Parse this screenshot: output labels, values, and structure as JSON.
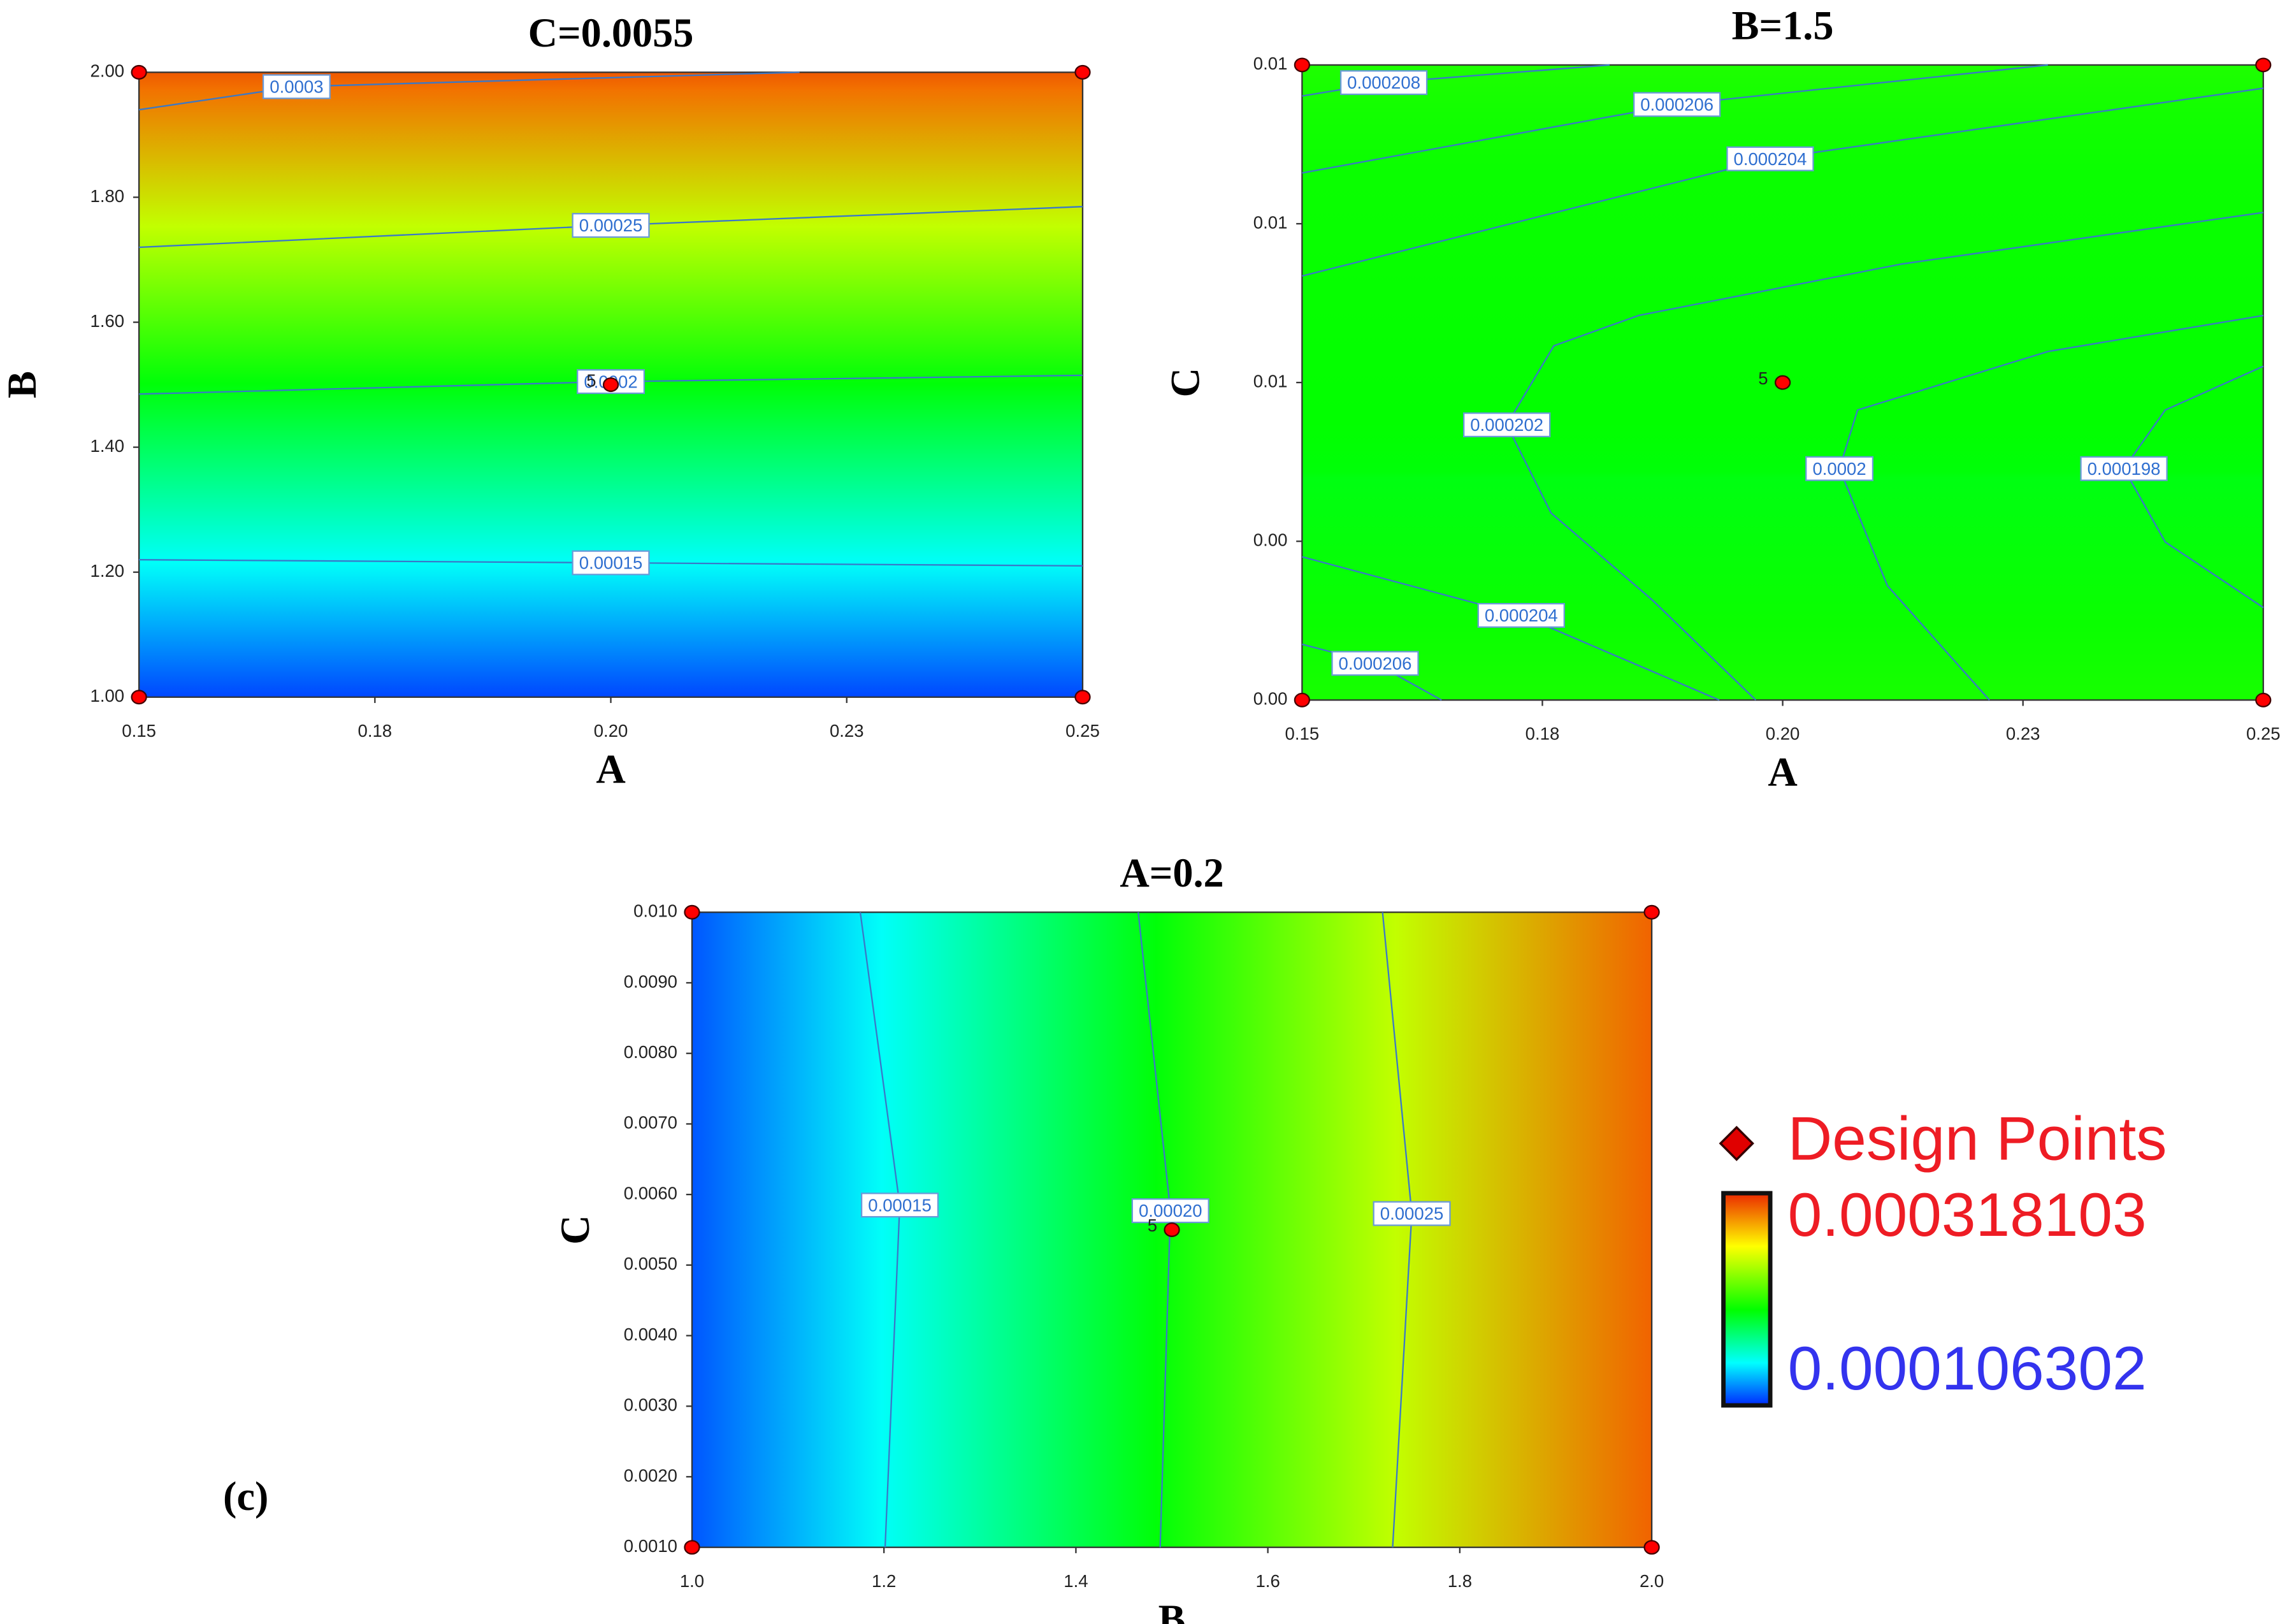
{
  "chart_data": [
    {
      "type": "contour",
      "title": "C=0.0055",
      "x_label": "A",
      "y_label": "B",
      "xlim": [
        0.15,
        0.25
      ],
      "ylim": [
        1,
        2
      ],
      "xticks": [
        0.15,
        {
          "value": 0.175,
          "label": "0.18"
        },
        {
          "value": 0.2,
          "label": "0.20"
        },
        {
          "value": 0.225,
          "label": "0.23"
        },
        0.25
      ],
      "yticks": [
        {
          "value": 1,
          "label": "1.00"
        },
        {
          "value": 1.2,
          "label": "1.20"
        },
        {
          "value": 1.4,
          "label": "1.40"
        },
        {
          "value": 1.6,
          "label": "1.60"
        },
        {
          "value": 1.8,
          "label": "1.80"
        },
        {
          "value": 2,
          "label": "2.00"
        }
      ],
      "contours": [
        {
          "level": 0.0003,
          "x": [
            0.15,
            0.1667,
            0.22
          ],
          "y": [
            1.94,
            1.977,
            2.0
          ]
        },
        {
          "level": 0.00025,
          "x": [
            0.15,
            0.2,
            0.25
          ],
          "y": [
            1.72,
            1.755,
            1.785
          ]
        },
        {
          "level": 0.0002,
          "x": [
            0.15,
            0.2,
            0.25
          ],
          "y": [
            1.485,
            1.505,
            1.515
          ]
        },
        {
          "level": 0.00015,
          "x": [
            0.15,
            0.2,
            0.25
          ],
          "y": [
            1.22,
            1.215,
            1.21
          ]
        }
      ],
      "design_points": {
        "color": "#ff0000",
        "x": [
          0.15,
          0.15,
          0.25,
          0.25,
          0.2
        ],
        "y": [
          1,
          2,
          1,
          2,
          1.5
        ],
        "labels": [
          null,
          null,
          null,
          null,
          "5"
        ]
      }
    },
    {
      "type": "contour",
      "title": "B=1.5",
      "x_label": "A",
      "y_label": "C",
      "xlim": [
        0.15,
        0.25
      ],
      "ylim": [
        0.001,
        0.01
      ],
      "xticks": [
        0.15,
        {
          "value": 0.175,
          "label": "0.18"
        },
        {
          "value": 0.2,
          "label": "0.20"
        },
        {
          "value": 0.225,
          "label": "0.23"
        },
        0.25
      ],
      "yticks": [
        {
          "value": 0.001,
          "label": "0.00"
        },
        {
          "value": 0.00325,
          "label": "0.00"
        },
        {
          "value": 0.0055,
          "label": "0.01"
        },
        {
          "value": 0.00775,
          "label": "0.01"
        },
        0.01
      ],
      "contours": [
        {
          "level": 0.000208,
          "x": [
            0.15,
            0.1585,
            0.182
          ],
          "y": [
            0.00956,
            0.00975,
            0.01
          ]
        },
        {
          "level": 0.000206,
          "x": [
            0.15,
            0.189,
            0.2276
          ],
          "y": [
            0.00847,
            0.00944,
            0.01
          ]
        },
        {
          "level": 0.000204,
          "x": [
            0.15,
            0.1987,
            0.25
          ],
          "y": [
            0.00701,
            0.00867,
            0.00967
          ]
        },
        {
          "level": 0.000202,
          "x": [
            0.25,
            0.2124,
            0.185,
            0.1762,
            0.1713,
            0.1759,
            0.1865,
            0.1972
          ],
          "y": [
            0.00791,
            0.00718,
            0.00645,
            0.00602,
            0.0049,
            0.00365,
            0.00241,
            0.001
          ]
        },
        {
          "level": 0.0002,
          "x": [
            0.25,
            0.2276,
            0.2078,
            0.2059,
            0.2109,
            0.2215
          ],
          "y": [
            0.00645,
            0.00594,
            0.00511,
            0.00428,
            0.00262,
            0.001
          ]
        },
        {
          "level": 0.000198,
          "x": [
            0.25,
            0.2398,
            0.2355,
            0.2398,
            0.25
          ],
          "y": [
            0.00573,
            0.00511,
            0.00428,
            0.00324,
            0.00231
          ]
        },
        {
          "level": 0.000204,
          "x": [
            0.15,
            0.1728,
            0.1934
          ],
          "y": [
            0.00303,
            0.0022,
            0.001
          ]
        },
        {
          "level": 0.000206,
          "x": [
            0.15,
            0.1576,
            0.1645
          ],
          "y": [
            0.00179,
            0.00152,
            0.001
          ]
        }
      ],
      "design_points": {
        "color": "#ff0000",
        "x": [
          0.15,
          0.15,
          0.25,
          0.25,
          0.2
        ],
        "y": [
          0.001,
          0.01,
          0.001,
          0.01,
          0.0055
        ],
        "labels": [
          null,
          null,
          null,
          null,
          "5"
        ]
      }
    },
    {
      "type": "contour",
      "title": "A=0.2",
      "x_label": "B",
      "y_label": "C",
      "xlim": [
        1,
        2
      ],
      "ylim": [
        0.001,
        0.01
      ],
      "xticks": [
        {
          "value": 1,
          "label": "1.0"
        },
        1.2,
        1.4,
        1.6,
        1.8,
        {
          "value": 2,
          "label": "2.0"
        }
      ],
      "yticks": [
        {
          "value": 0.001,
          "label": "0.0010"
        },
        {
          "value": 0.002,
          "label": "0.0020"
        },
        {
          "value": 0.003,
          "label": "0.0030"
        },
        {
          "value": 0.004,
          "label": "0.0040"
        },
        {
          "value": 0.005,
          "label": "0.0050"
        },
        {
          "value": 0.006,
          "label": "0.0060"
        },
        {
          "value": 0.007,
          "label": "0.0070"
        },
        {
          "value": 0.008,
          "label": "0.0080"
        },
        {
          "value": 0.009,
          "label": "0.0090"
        },
        {
          "value": 0.01,
          "label": "0.010"
        }
      ],
      "contours": [
        {
          "level": 0.00015,
          "x": [
            1.1753,
            1.2165,
            1.2012
          ],
          "y": [
            0.01,
            0.00585,
            0.001
          ]
        },
        {
          "level": 0.0002,
          "level_label": "0.00020",
          "x": [
            1.465,
            1.4985,
            1.4878
          ],
          "y": [
            0.01,
            0.00577,
            0.001
          ]
        },
        {
          "level": 0.00025,
          "x": [
            1.7195,
            1.75,
            1.73
          ],
          "y": [
            0.01,
            0.00573,
            0.001
          ]
        }
      ],
      "design_points": {
        "color": "#ff0000",
        "x": [
          1,
          1,
          2,
          2,
          1.5
        ],
        "y": [
          0.001,
          0.01,
          0.001,
          0.01,
          0.0055
        ],
        "labels": [
          null,
          null,
          null,
          null,
          "5"
        ]
      }
    }
  ],
  "panel_label": "(c)",
  "legend": {
    "design_points_label": "Design Points",
    "colorbar": {
      "max": 0.000318103,
      "min": 0.000106302
    }
  }
}
